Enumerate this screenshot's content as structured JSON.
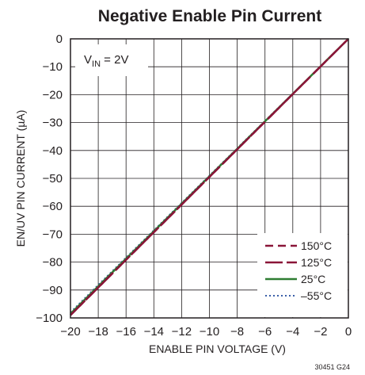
{
  "chart_data": {
    "type": "line",
    "title": "Negative Enable Pin Current",
    "xlabel": "ENABLE PIN VOLTAGE (V)",
    "ylabel": "EN/UV PIN CURRENT (µA)",
    "xlim": [
      -20,
      0
    ],
    "ylim": [
      -100,
      0
    ],
    "x_ticks": [
      "−20",
      "−18",
      "−16",
      "−14",
      "−12",
      "−10",
      "−8",
      "−6",
      "−4",
      "−2",
      "0"
    ],
    "y_ticks": [
      "0",
      "−10",
      "−20",
      "−30",
      "−40",
      "−50",
      "−60",
      "−70",
      "−80",
      "−90",
      "−100"
    ],
    "grid": true,
    "legend_position": "bottom-right",
    "annotation": {
      "main": "V",
      "sub": "IN",
      "rest": " = 2V"
    },
    "figure_number": "30451 G24",
    "series": [
      {
        "name": "150°C",
        "color": "#8a1538",
        "style": "dashed",
        "x": [
          -20,
          0
        ],
        "y": [
          -99,
          0
        ]
      },
      {
        "name": "125°C",
        "color": "#8a1538",
        "style": "longdash",
        "x": [
          -20,
          0
        ],
        "y": [
          -99,
          0
        ]
      },
      {
        "name": "25°C",
        "color": "#2e7d32",
        "style": "solid",
        "x": [
          -20,
          0
        ],
        "y": [
          -98.5,
          0
        ]
      },
      {
        "name": "–55°C",
        "color": "#3a5fa8",
        "style": "dotted",
        "x": [
          -20,
          0
        ],
        "y": [
          -98,
          0
        ]
      }
    ]
  }
}
